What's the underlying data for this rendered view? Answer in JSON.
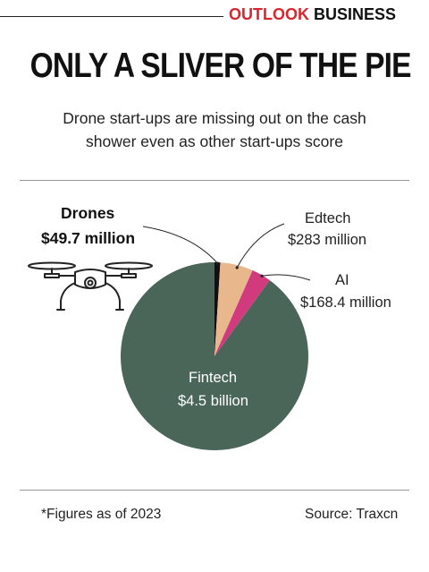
{
  "header": {
    "brand_part1": "OUTLOOK",
    "brand_part2": "BUSINESS",
    "brand_color": "#d7262e"
  },
  "title": "ONLY A SLIVER OF THE PIE",
  "subtitle_line1": "Drone start-ups are missing out on the cash",
  "subtitle_line2": "shower even as other start-ups score",
  "chart_data": {
    "type": "pie",
    "unit": "USD million",
    "slices": [
      {
        "name": "Drones",
        "value": 49.7,
        "label_value": "$49.7 million",
        "color": "#111111"
      },
      {
        "name": "Edtech",
        "value": 283,
        "label_value": "$283 million",
        "color": "#e8b88c"
      },
      {
        "name": "AI",
        "value": 168.4,
        "label_value": "$168.4 million",
        "color": "#d23a7e"
      },
      {
        "name": "Fintech",
        "value": 4500,
        "label_value": "$4.5 billion",
        "color": "#4a6658"
      }
    ]
  },
  "icons": {
    "drone": "drone-icon"
  },
  "footer": {
    "note": "*Figures as of 2023",
    "source": "Source: Traxcn"
  }
}
